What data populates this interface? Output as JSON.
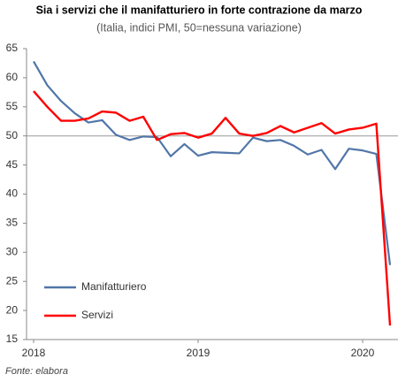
{
  "chart_data": {
    "type": "line",
    "title": "Sia i servizi che il manifatturiero in forte contrazione da marzo",
    "subtitle": "(Italia, indici PMI, 50=nessuna variazione)",
    "source": "Fonte: elabora",
    "categories": [
      "2018",
      null,
      null,
      null,
      null,
      null,
      null,
      null,
      null,
      null,
      null,
      null,
      "2019",
      null,
      null,
      null,
      null,
      null,
      null,
      null,
      null,
      null,
      null,
      null,
      "2020",
      null,
      null
    ],
    "series": [
      {
        "name": "Manifatturiero",
        "color": "#5176a8",
        "values": [
          62.8,
          58.7,
          56.0,
          53.9,
          52.3,
          52.7,
          50.2,
          49.3,
          49.9,
          49.8,
          46.5,
          48.6,
          46.6,
          47.2,
          47.1,
          47.0,
          49.7,
          49.1,
          49.3,
          48.3,
          46.8,
          47.6,
          44.3,
          47.8,
          47.5,
          46.9,
          27.8
        ]
      },
      {
        "name": "Servizi",
        "color": "#ff0000",
        "values": [
          57.7,
          55.0,
          52.6,
          52.6,
          53.0,
          54.2,
          54.0,
          52.6,
          53.3,
          49.3,
          50.3,
          50.5,
          49.7,
          50.4,
          53.1,
          50.4,
          50.0,
          50.5,
          51.7,
          50.6,
          51.4,
          52.2,
          50.4,
          51.1,
          51.4,
          52.1,
          17.4
        ]
      }
    ],
    "ylim": [
      15,
      65
    ],
    "yticks": [
      15,
      20,
      25,
      30,
      35,
      40,
      45,
      50,
      55,
      60,
      65
    ],
    "reference_line": 50,
    "legend": "lower-left"
  }
}
